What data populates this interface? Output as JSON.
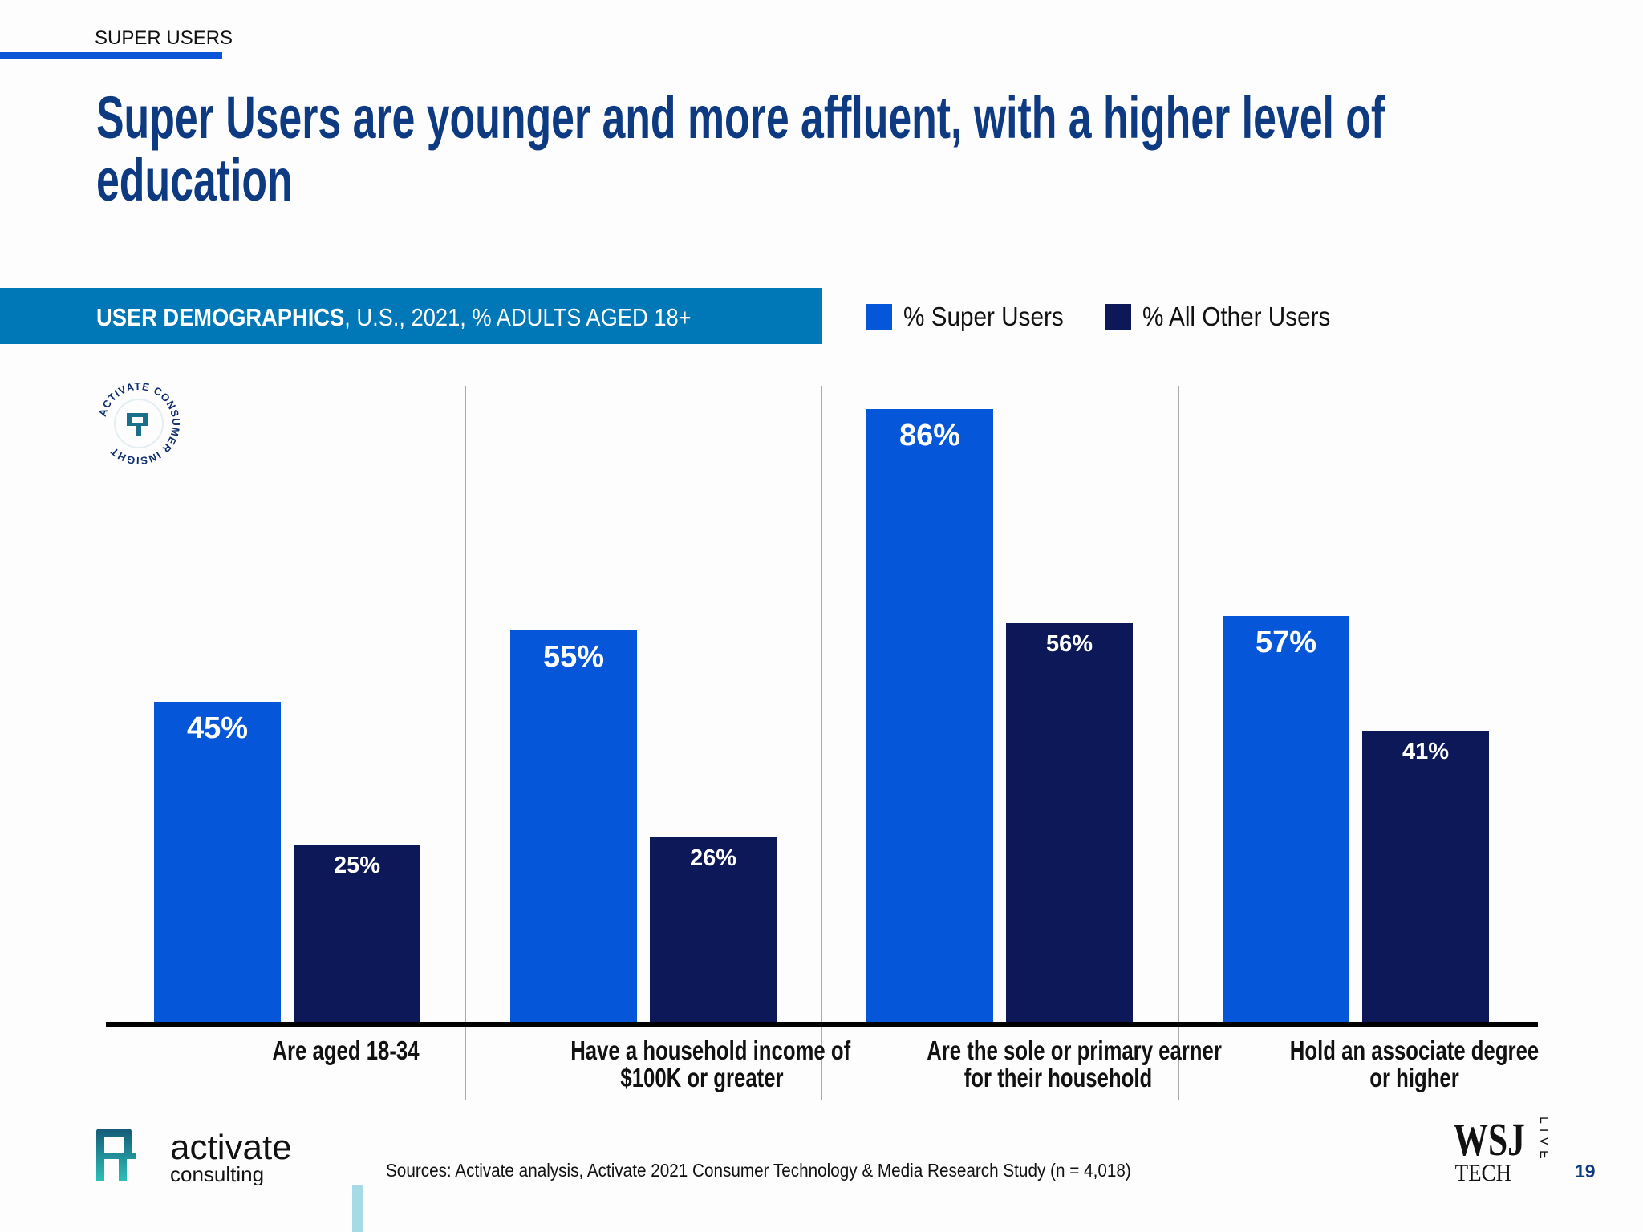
{
  "header": {
    "section_label": "SUPER USERS",
    "title": "Super Users are younger and more affluent, with a higher level of education"
  },
  "banner": {
    "bold": "USER DEMOGRAPHICS",
    "rest": ", U.S., 2021, % ADULTS AGED 18+"
  },
  "badge": {
    "text": "ACTIVATE CONSUMER INSIGHT"
  },
  "chart_data": {
    "type": "bar",
    "categories": [
      "Are aged 18-34",
      "Have a household income of $100K or greater",
      "Are the sole or primary earner for their household",
      "Hold an associate degree or higher"
    ],
    "category_lines": [
      [
        "Are aged 18-34"
      ],
      [
        "Have a household income of",
        "$100K or greater"
      ],
      [
        "Are the sole or primary earner",
        "for their household"
      ],
      [
        "Hold an associate degree",
        "or higher"
      ]
    ],
    "series": [
      {
        "name": "% Super Users",
        "values": [
          45,
          55,
          86,
          57
        ],
        "labels": [
          "45%",
          "55%",
          "86%",
          "57%"
        ],
        "color": "#0556d8"
      },
      {
        "name": "% All Other Users",
        "values": [
          25,
          26,
          56,
          41
        ],
        "labels": [
          "25%",
          "26%",
          "56%",
          "41%"
        ],
        "color": "#0c1858"
      }
    ],
    "ylim": [
      0,
      100
    ],
    "grid": false,
    "legend": "top-right"
  },
  "footer": {
    "logo_word": "activate",
    "logo_sub": "consulting",
    "sources": "Sources: Activate analysis, Activate 2021 Consumer Technology & Media Research Study (n = 4,018)",
    "wsj_logo": "WSJ TECH LIVE",
    "page_number": "19"
  }
}
